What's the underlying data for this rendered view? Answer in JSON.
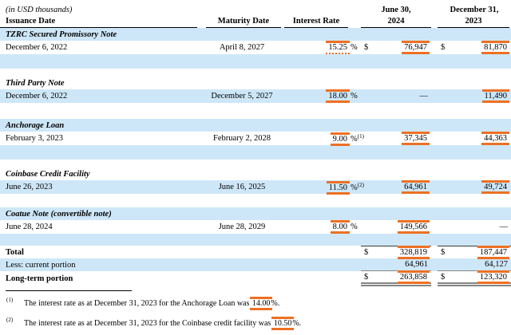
{
  "colors": {
    "highlight": "#cee7f8",
    "annotation": "#ee7022"
  },
  "header": {
    "units_caption": "(in USD thousands)",
    "issuance": "Issuance Date",
    "maturity": "Maturity Date",
    "rate": "Interest Rate",
    "june_line1": "June 30,",
    "june_line2": "2024",
    "dec_line1": "December 31,",
    "dec_line2": "2023"
  },
  "table": {
    "sections": [
      {
        "title": "TZRC Secured Promissory Note",
        "row": {
          "issuance": "December 6, 2022",
          "maturity": "April 8, 2027",
          "rate": "15.25",
          "rate_suffix": "%",
          "june_currency": "$",
          "june": "76,947",
          "dec_currency": "$",
          "dec": "81,870"
        }
      },
      {
        "title": "Third Party Note",
        "row": {
          "issuance": "December 6, 2022",
          "maturity": "December 5, 2027",
          "rate": "18.00",
          "rate_suffix": "%",
          "june": "—",
          "dec": "11,490"
        }
      },
      {
        "title": "Anchorage Loan",
        "row": {
          "issuance": "February 3, 2023",
          "maturity": "February 2, 2028",
          "rate": "9.00",
          "rate_suffix": "%",
          "rate_note": "(1)",
          "june": "37,345",
          "dec": "44,363"
        }
      },
      {
        "title": "Coinbase Credit Facility",
        "row": {
          "issuance": "June 26, 2023",
          "maturity": "June 16, 2025",
          "rate": "11.50",
          "rate_suffix": "%",
          "rate_note": "(2)",
          "june": "64,961",
          "dec": "49,724"
        }
      },
      {
        "title": "Coatue Note (convertible note)",
        "row": {
          "issuance": "June 28, 2024",
          "maturity": "June 28, 2029",
          "rate": "8.00",
          "rate_suffix": "%",
          "june": "149,566",
          "dec": "—"
        }
      }
    ],
    "totals": [
      {
        "label": "Total",
        "june_currency": "$",
        "june": "328,819",
        "dec_currency": "$",
        "dec": "187,447"
      },
      {
        "label": "Less: current portion",
        "june": "64,961",
        "dec": "64,127"
      },
      {
        "label": "Long-term portion",
        "june_currency": "$",
        "june": "263,858",
        "dec_currency": "$",
        "dec": "123,320"
      }
    ]
  },
  "footnotes": [
    {
      "marker": "(1)",
      "text_before": "The interest rate as at December 31, 2023 for the Anchorage Loan was ",
      "value": "14.00",
      "text_after": "%."
    },
    {
      "marker": "(2)",
      "text_before": "The interest rate as at December 31, 2023 for the Coinbase credit facility was ",
      "value": "10.50",
      "text_after": "%."
    }
  ]
}
